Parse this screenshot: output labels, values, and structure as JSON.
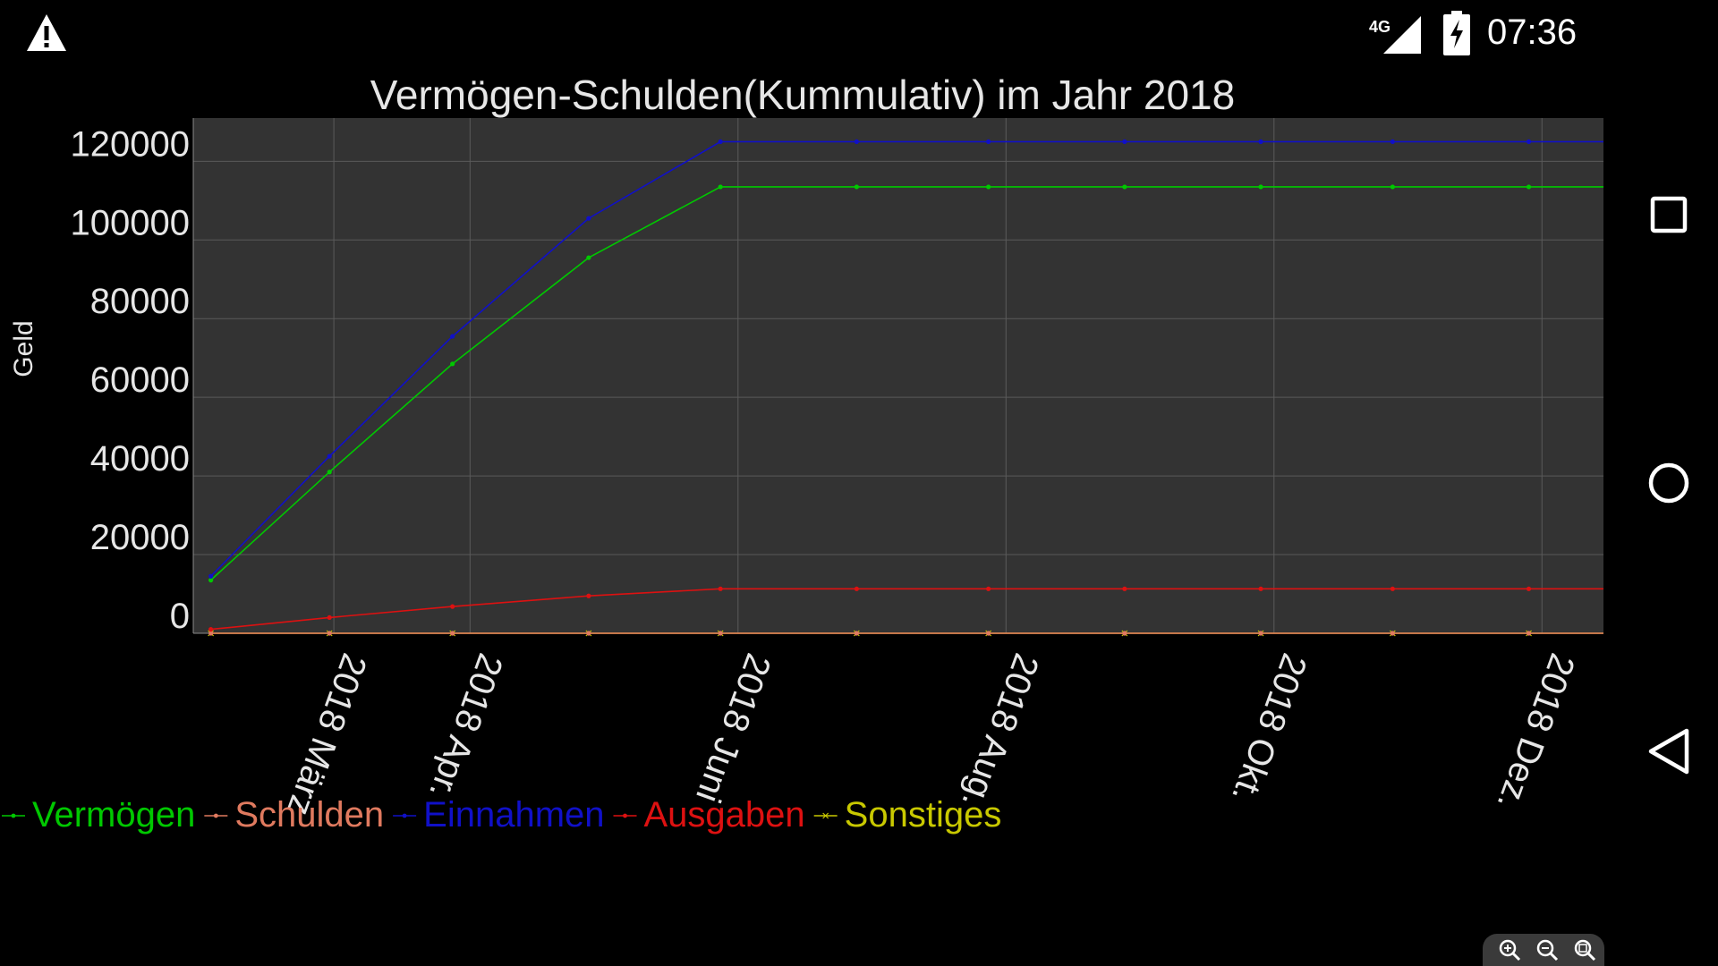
{
  "status_bar": {
    "time": "07:36",
    "network": "4G",
    "icons": [
      "warning-icon",
      "signal-4g-icon",
      "battery-charging-icon"
    ]
  },
  "nav_bar": {
    "icons": [
      "recents-square-icon",
      "home-circle-icon",
      "back-triangle-icon"
    ]
  },
  "zoom_controls": {
    "icons": [
      "zoom-in-icon",
      "zoom-out-icon",
      "zoom-reset-icon"
    ]
  },
  "chart_data": {
    "type": "line",
    "title": "Vermögen-Schulden(Kummulativ) im Jahr 2018",
    "xlabel": "",
    "ylabel": "Geld",
    "ylim": [
      0,
      131000
    ],
    "y_ticks": [
      0,
      20000,
      40000,
      60000,
      80000,
      100000,
      120000
    ],
    "y_tick_labels": [
      "0",
      "20000",
      "40000",
      "60000",
      "80000",
      "100000",
      "120000"
    ],
    "x_tick_labels": [
      "2018 März",
      "2018 Apr.",
      "2018 Juni",
      "2018 Aug.",
      "2018 Okt.",
      "2018 Dez."
    ],
    "x_tick_dates": [
      "2018-03-01",
      "2018-04-01",
      "2018-06-01",
      "2018-08-01",
      "2018-10-01",
      "2018-12-01"
    ],
    "xlim": [
      "2018-01-28",
      "2018-12-15"
    ],
    "grid": true,
    "legend_position": "bottom-left",
    "plot_background": "#333333",
    "x": [
      "2018-02-01",
      "2018-02-28",
      "2018-03-28",
      "2018-04-28",
      "2018-05-28",
      "2018-06-28",
      "2018-07-28",
      "2018-08-28",
      "2018-09-28",
      "2018-10-28",
      "2018-11-28",
      "2018-12-28"
    ],
    "series": [
      {
        "name": "Vermögen",
        "color": "#00c800",
        "marker": "dot",
        "values": [
          13500,
          41000,
          68500,
          95500,
          113500,
          113500,
          113500,
          113500,
          113500,
          113500,
          113500,
          113500
        ]
      },
      {
        "name": "Schulden",
        "color": "#e07a5f",
        "marker": "dot",
        "values": [
          0,
          0,
          0,
          0,
          0,
          0,
          0,
          0,
          0,
          0,
          0,
          0
        ]
      },
      {
        "name": "Einnahmen",
        "color": "#1010c8",
        "marker": "dot",
        "values": [
          14500,
          45000,
          75500,
          105500,
          125000,
          125000,
          125000,
          125000,
          125000,
          125000,
          125000,
          125000
        ]
      },
      {
        "name": "Ausgaben",
        "color": "#dd1111",
        "marker": "dot",
        "values": [
          1000,
          4000,
          6800,
          9500,
          11300,
          11300,
          11300,
          11300,
          11300,
          11300,
          11300,
          11300
        ]
      },
      {
        "name": "Sonstiges",
        "color": "#c8c800",
        "marker": "x",
        "values": [
          0,
          0,
          0,
          0,
          0,
          0,
          0,
          0,
          0,
          0,
          0,
          0
        ]
      }
    ]
  }
}
